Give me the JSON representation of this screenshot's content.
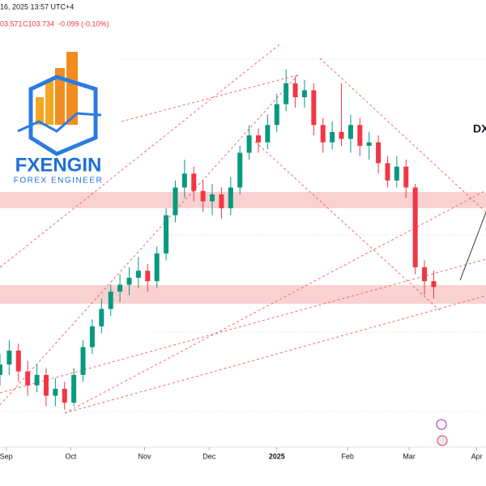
{
  "header": {
    "datetime": "16, 2025 13:57 UTC+4",
    "quote": "03.571",
    "close": "C103.734",
    "change": "-0.099 (-0.10%)"
  },
  "logo": {
    "name": "FXENGIN",
    "tagline": "FOREX ENGINEER"
  },
  "chart_data": {
    "type": "candlestick",
    "label": "DX",
    "x": [
      -2,
      1,
      4,
      7,
      10,
      13,
      16,
      19,
      22,
      25,
      28,
      31,
      34,
      37,
      40,
      43,
      46,
      49,
      52,
      55,
      58,
      61,
      64,
      67,
      70,
      73,
      76,
      79,
      82,
      85,
      88,
      91,
      94,
      97,
      100,
      103,
      106,
      109,
      112,
      115,
      118,
      121,
      124,
      127,
      130,
      133,
      136,
      139
    ],
    "series": [
      {
        "open": [
          101.2,
          101.5,
          101.9,
          101.3,
          100.9,
          101.2,
          100.6,
          100.8,
          100.4,
          101.2,
          102.0,
          102.6,
          103.1,
          103.6,
          103.8,
          104.0,
          104.2,
          103.9,
          104.7,
          105.8,
          106.6,
          107.0,
          106.5,
          106.2,
          106.4,
          106.0,
          106.6,
          107.6,
          108.1,
          107.9,
          108.4,
          109.0,
          109.6,
          109.2,
          109.4,
          108.4,
          107.9,
          108.2,
          108.0,
          108.4,
          107.8,
          107.9,
          107.3,
          106.8,
          107.2,
          106.6,
          104.3,
          103.9
        ],
        "high": [
          101.8,
          102.2,
          102.1,
          101.6,
          101.5,
          101.4,
          101.1,
          101.0,
          101.4,
          102.2,
          102.8,
          103.4,
          103.8,
          104.1,
          104.3,
          104.6,
          104.4,
          104.9,
          106.0,
          106.8,
          107.4,
          107.2,
          106.8,
          106.7,
          106.6,
          106.9,
          107.8,
          108.4,
          108.3,
          108.7,
          109.3,
          110.0,
          109.8,
          109.7,
          109.6,
          108.6,
          108.5,
          109.6,
          108.7,
          108.6,
          108.2,
          108.1,
          107.5,
          107.5,
          107.4,
          106.7,
          104.5,
          104.2
        ],
        "low": [
          100.9,
          101.2,
          101.0,
          100.6,
          100.7,
          100.3,
          100.3,
          100.2,
          100.3,
          101.0,
          101.8,
          102.4,
          102.9,
          103.3,
          103.5,
          103.7,
          103.6,
          103.7,
          104.5,
          105.6,
          106.3,
          106.2,
          105.9,
          105.8,
          105.7,
          105.8,
          106.4,
          107.4,
          107.6,
          107.7,
          108.2,
          108.8,
          108.9,
          108.9,
          108.1,
          107.6,
          107.7,
          107.8,
          107.6,
          107.5,
          107.4,
          107.0,
          106.6,
          106.6,
          106.3,
          104.1,
          103.5,
          103.4
        ],
        "close": [
          101.5,
          101.9,
          101.3,
          100.9,
          101.2,
          100.6,
          100.8,
          100.4,
          101.2,
          102.0,
          102.6,
          103.1,
          103.6,
          103.8,
          104.0,
          104.2,
          103.9,
          104.7,
          105.8,
          106.6,
          107.0,
          106.5,
          106.2,
          106.4,
          106.0,
          106.6,
          107.6,
          108.1,
          107.9,
          108.4,
          109.0,
          109.6,
          109.2,
          109.4,
          108.4,
          107.9,
          108.2,
          108.0,
          108.4,
          107.8,
          107.9,
          107.3,
          106.8,
          107.2,
          106.6,
          104.3,
          103.9,
          103.73
        ]
      }
    ],
    "up_color": "#089981",
    "down_color": "#f23645",
    "xlim": [
      -2,
      156
    ],
    "ylim": [
      98,
      112
    ],
    "xticks": [
      {
        "value": 0,
        "label": "Sep"
      },
      {
        "value": 21,
        "label": "Oct"
      },
      {
        "value": 45,
        "label": "Nov"
      },
      {
        "value": 66,
        "label": "Dec"
      },
      {
        "value": 88,
        "label": "2025"
      },
      {
        "value": 111,
        "label": "Feb"
      },
      {
        "value": 131,
        "label": "Mar"
      },
      {
        "value": 153,
        "label": "Apr"
      }
    ]
  }
}
